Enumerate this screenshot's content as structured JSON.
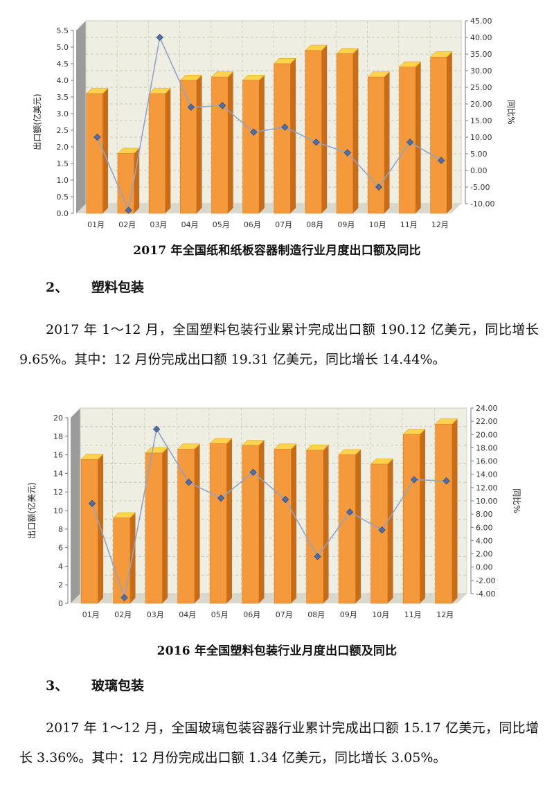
{
  "colors": {
    "bar_front": "#F4993C",
    "bar_side": "#C96C17",
    "bar_top": "#FFD34D",
    "line": "#8FA4C8",
    "marker": "#4F6FA8",
    "plot_bg": "#EEEEE2",
    "wall_side": "#9B9B9B"
  },
  "chart1": {
    "caption": "2017 年全国纸和纸板容器制造行业月度出口额及同比",
    "chart_data": {
      "type": "bar",
      "title": "2017 年全国纸和纸板容器制造行业月度出口额及同比",
      "categories": [
        "01月",
        "02月",
        "03月",
        "04月",
        "05月",
        "06月",
        "07月",
        "08月",
        "09月",
        "10月",
        "11月",
        "12月"
      ],
      "series": [
        {
          "axis": "left",
          "kind": "bar",
          "values": [
            3.6,
            1.8,
            3.6,
            4.0,
            4.1,
            4.0,
            4.5,
            4.9,
            4.8,
            4.1,
            4.4,
            4.7
          ]
        },
        {
          "axis": "right",
          "kind": "line",
          "values": [
            10.0,
            -12.0,
            40.0,
            19.0,
            19.5,
            11.5,
            13.0,
            8.5,
            5.3,
            -5.0,
            8.5,
            3.0
          ]
        }
      ],
      "ylabel": "出口额(亿美元)",
      "y2label": "同比%",
      "ylim": [
        0,
        5.5
      ],
      "y2lim": [
        -10,
        45
      ],
      "yticks": [
        "0.0",
        "0.5",
        "1.0",
        "1.5",
        "2.0",
        "2.5",
        "3.0",
        "3.5",
        "4.0",
        "4.5",
        "5.0",
        "5.5"
      ],
      "y2ticks": [
        "-10.00",
        "-5.00",
        "0.00",
        "5.00",
        "10.00",
        "15.00",
        "20.00",
        "25.00",
        "30.00",
        "35.00",
        "40.00",
        "45.00"
      ],
      "grid": true
    }
  },
  "section2": {
    "number": "2、",
    "title": "塑料包装",
    "paragraph": "2017 年 1～12 月，全国塑料包装行业累计完成出口额 190.12 亿美元，同比增长 9.65%。其中：12 月份完成出口额 19.31 亿美元，同比增长 14.44%。"
  },
  "chart2": {
    "caption": "2016 年全国塑料包装行业月度出口额及同比",
    "chart_data": {
      "type": "bar",
      "title": "2016 年全国塑料包装行业月度出口额及同比",
      "categories": [
        "01月",
        "02月",
        "03月",
        "04月",
        "05月",
        "06月",
        "07月",
        "08月",
        "09月",
        "10月",
        "11月",
        "12月"
      ],
      "series": [
        {
          "axis": "left",
          "kind": "bar",
          "values": [
            15.5,
            9.2,
            16.2,
            16.6,
            17.2,
            17.0,
            16.6,
            16.5,
            16.0,
            15.0,
            18.2,
            19.3
          ]
        },
        {
          "axis": "right",
          "kind": "line",
          "values": [
            9.6,
            -4.6,
            20.8,
            12.8,
            10.4,
            14.3,
            10.2,
            1.6,
            8.3,
            5.6,
            13.2,
            13.0
          ]
        }
      ],
      "ylabel": "出口额(亿美元)",
      "y2label": "同比%",
      "ylim": [
        0,
        20
      ],
      "y2lim": [
        -4,
        24
      ],
      "yticks": [
        "0",
        "2",
        "4",
        "6",
        "8",
        "10",
        "12",
        "14",
        "16",
        "18",
        "20"
      ],
      "y2ticks": [
        "-4.00",
        "-2.00",
        "0.00",
        "2.00",
        "4.00",
        "6.00",
        "8.00",
        "10.00",
        "12.00",
        "14.00",
        "16.00",
        "18.00",
        "20.00",
        "22.00",
        "24.00"
      ],
      "grid": true
    }
  },
  "section3": {
    "number": "3、",
    "title": "玻璃包装",
    "paragraph": "2017 年 1～12 月，全国玻璃包装容器行业累计完成出口额 15.17 亿美元，同比增长 3.36%。其中：12 月份完成出口额 1.34 亿美元，同比增长 3.05%。"
  }
}
